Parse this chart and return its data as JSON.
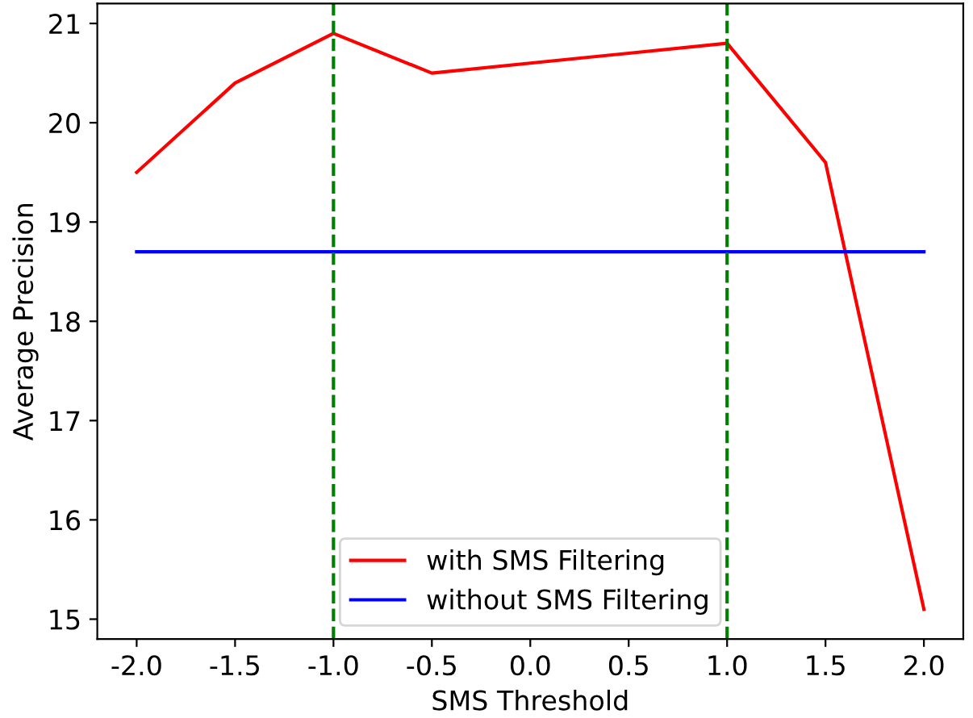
{
  "chart_data": {
    "type": "line",
    "xlabel": "SMS Threshold",
    "ylabel": "Average Precision",
    "x": [
      -2.0,
      -1.5,
      -1.0,
      -0.5,
      0.0,
      0.5,
      1.0,
      1.5,
      2.0
    ],
    "series": [
      {
        "name": "with SMS Filtering",
        "color": "#ff0000",
        "values": [
          19.5,
          20.4,
          20.9,
          20.5,
          20.6,
          20.7,
          20.8,
          19.6,
          15.1
        ]
      },
      {
        "name": "without SMS Filtering",
        "color": "#0000ff",
        "values": [
          18.7,
          18.7,
          18.7,
          18.7,
          18.7,
          18.7,
          18.7,
          18.7,
          18.7
        ]
      }
    ],
    "ref_lines": [
      {
        "axis": "x",
        "value": -1.0,
        "color": "#008000",
        "line_style": "dashed"
      },
      {
        "axis": "x",
        "value": 1.0,
        "color": "#008000",
        "line_style": "dashed"
      }
    ],
    "xlim": [
      -2.2,
      2.2
    ],
    "ylim": [
      14.8,
      21.2
    ],
    "xticks": [
      {
        "value": -2.0,
        "label": "-2.0"
      },
      {
        "value": -1.5,
        "label": "-1.5"
      },
      {
        "value": -1.0,
        "label": "-1.0"
      },
      {
        "value": -0.5,
        "label": "-0.5"
      },
      {
        "value": 0.0,
        "label": "0.0"
      },
      {
        "value": 0.5,
        "label": "0.5"
      },
      {
        "value": 1.0,
        "label": "1.0"
      },
      {
        "value": 1.5,
        "label": "1.5"
      },
      {
        "value": 2.0,
        "label": "2.0"
      }
    ],
    "yticks": [
      15,
      16,
      17,
      18,
      19,
      20,
      21
    ],
    "legend": "bottom",
    "grid": false
  }
}
